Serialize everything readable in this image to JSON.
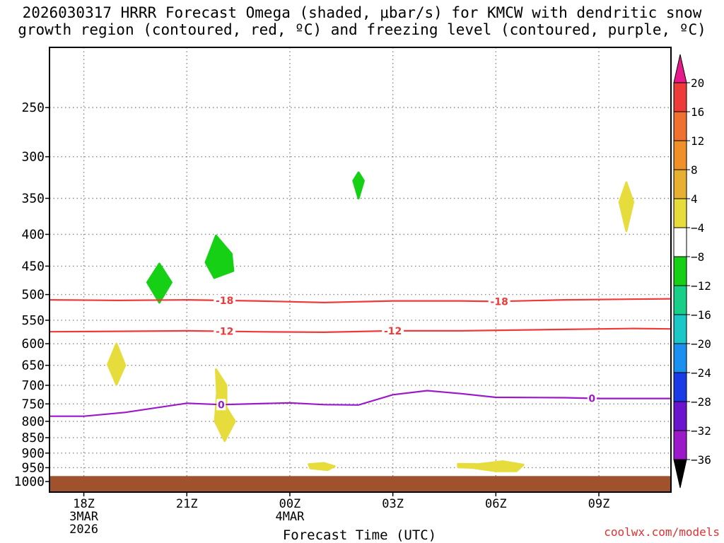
{
  "title": {
    "line1": "2026030317 HRRR Forecast Omega (shaded, μbar/s) for KMCW with dendritic snow",
    "line2": "growth region (contoured, red, ºC) and freezing level (contoured, purple, ºC)"
  },
  "credit": "coolwx.com/models",
  "chart_data": {
    "type": "time-height cross section",
    "xlabel": "Forecast Time (UTC)",
    "ylabel": "",
    "x_range_hours_utc": [
      17.0,
      35.1
    ],
    "y_scale": "log pressure (hPa), inverted",
    "y_range": [
      1040,
      200
    ],
    "grid": true,
    "y_ticks": [
      250,
      300,
      350,
      400,
      450,
      500,
      550,
      600,
      650,
      700,
      750,
      800,
      850,
      900,
      950,
      1000
    ],
    "x_ticks": [
      {
        "hour": 18,
        "lines": [
          "18Z",
          "3MAR",
          "2026"
        ]
      },
      {
        "hour": 21,
        "lines": [
          "21Z"
        ]
      },
      {
        "hour": 24,
        "lines": [
          "00Z",
          "4MAR"
        ]
      },
      {
        "hour": 27,
        "lines": [
          "03Z"
        ]
      },
      {
        "hour": 30,
        "lines": [
          "06Z"
        ]
      },
      {
        "hour": 33,
        "lines": [
          "09Z"
        ]
      }
    ],
    "contours": [
      {
        "name": "-18",
        "color": "#ef3a3a",
        "points": [
          [
            17,
            510
          ],
          [
            19,
            511
          ],
          [
            21,
            510
          ],
          [
            23,
            512
          ],
          [
            25,
            515
          ],
          [
            27,
            512
          ],
          [
            29,
            512
          ],
          [
            30,
            513
          ],
          [
            32,
            510
          ],
          [
            35.1,
            508
          ]
        ],
        "labels": [
          {
            "hour": 22.1,
            "text": "-18"
          },
          {
            "hour": 30.1,
            "text": "-18"
          }
        ]
      },
      {
        "name": "-12",
        "color": "#ef3a3a",
        "points": [
          [
            17,
            574
          ],
          [
            19,
            573
          ],
          [
            21,
            572
          ],
          [
            23,
            574
          ],
          [
            25,
            575
          ],
          [
            27,
            572
          ],
          [
            29,
            572
          ],
          [
            32,
            569
          ],
          [
            34,
            567
          ],
          [
            35.1,
            568
          ]
        ],
        "labels": [
          {
            "hour": 22.1,
            "text": "-12"
          },
          {
            "hour": 27.0,
            "text": "-12"
          }
        ]
      },
      {
        "name": "0",
        "color": "#9b19c8",
        "points": [
          [
            17,
            785
          ],
          [
            18,
            785
          ],
          [
            19.2,
            774
          ],
          [
            21,
            748
          ],
          [
            22,
            752
          ],
          [
            24,
            747
          ],
          [
            25,
            752
          ],
          [
            26,
            753
          ],
          [
            27,
            725
          ],
          [
            28,
            714
          ],
          [
            29,
            722
          ],
          [
            30,
            732
          ],
          [
            32,
            733
          ],
          [
            33,
            735
          ],
          [
            35.1,
            735
          ]
        ],
        "labels": [
          {
            "hour": 22.0,
            "text": "0"
          },
          {
            "hour": 32.8,
            "text": "0"
          }
        ]
      }
    ],
    "omega_areas": [
      {
        "color": "#15d015",
        "pts": [
          [
            19.85,
            478
          ],
          [
            20.2,
            446
          ],
          [
            20.55,
            478
          ],
          [
            20.2,
            515
          ]
        ]
      },
      {
        "color": "#15d015",
        "pts": [
          [
            21.55,
            444
          ],
          [
            21.85,
            402
          ],
          [
            22.3,
            430
          ],
          [
            22.35,
            458
          ],
          [
            21.8,
            470
          ]
        ]
      },
      {
        "color": "#15d015",
        "pts": [
          [
            26.0,
            318
          ],
          [
            26.15,
            328
          ],
          [
            26.0,
            350
          ],
          [
            25.85,
            328
          ]
        ]
      },
      {
        "color": "#e6dd3c",
        "pts": [
          [
            33.8,
            330
          ],
          [
            34.0,
            355
          ],
          [
            33.8,
            395
          ],
          [
            33.6,
            355
          ]
        ]
      },
      {
        "color": "#e6dd3c",
        "pts": [
          [
            18.7,
            648
          ],
          [
            18.95,
            600
          ],
          [
            19.2,
            650
          ],
          [
            18.95,
            698
          ]
        ]
      },
      {
        "color": "#e6dd3c",
        "pts": [
          [
            21.85,
            660
          ],
          [
            22.15,
            700
          ],
          [
            22.15,
            760
          ],
          [
            22.4,
            800
          ],
          [
            22.1,
            860
          ],
          [
            21.82,
            800
          ],
          [
            21.88,
            720
          ]
        ]
      },
      {
        "color": "#e6dd3c",
        "pts": [
          [
            24.55,
            938
          ],
          [
            25.0,
            934
          ],
          [
            25.3,
            945
          ],
          [
            25.1,
            958
          ],
          [
            24.6,
            952
          ]
        ]
      },
      {
        "color": "#e6dd3c",
        "pts": [
          [
            28.9,
            937
          ],
          [
            29.5,
            938
          ],
          [
            30.2,
            928
          ],
          [
            30.8,
            940
          ],
          [
            30.6,
            962
          ],
          [
            30.0,
            962
          ],
          [
            29.3,
            950
          ],
          [
            28.9,
            948
          ]
        ]
      }
    ],
    "ground": {
      "color": "#a0522d",
      "from_pressure": 980
    },
    "colorbar": {
      "levels": [
        20,
        16,
        12,
        8,
        4,
        -4,
        -8,
        -12,
        -16,
        -20,
        -24,
        -28,
        -32,
        -36
      ],
      "colors": [
        "#ef3a3a",
        "#f07030",
        "#f09028",
        "#e8b030",
        "#e6dd3c",
        "#ffffff",
        "#15d015",
        "#17cf88",
        "#1ac8c8",
        "#1a90f0",
        "#1a3ae8",
        "#6a14d0",
        "#9b19c8",
        "#9a9a9a"
      ],
      "top_arrow_color": "#e8198a",
      "bottom_arrow_color": "#000000"
    }
  }
}
